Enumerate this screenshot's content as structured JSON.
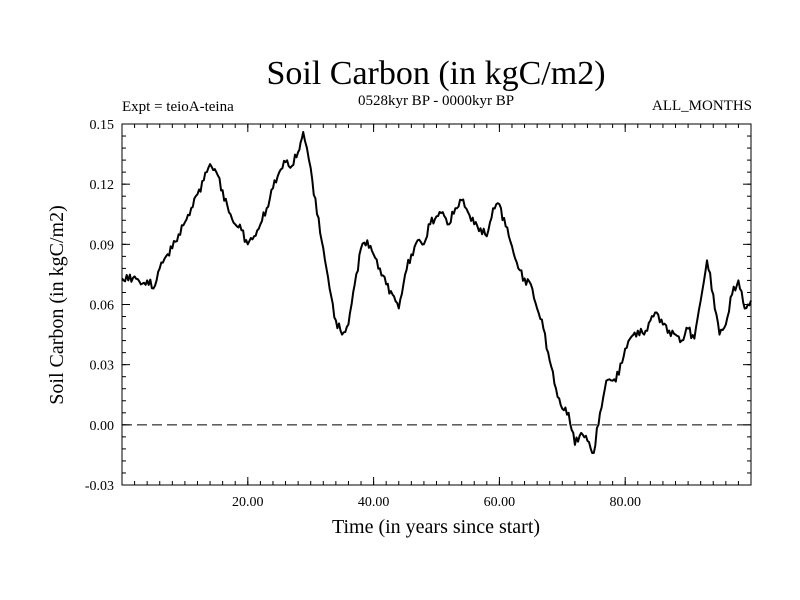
{
  "chart_data": {
    "type": "line",
    "title": "Soil Carbon (in kgC/m2)",
    "subtitle_left": "Expt = teioA-teina",
    "subtitle_center": "0528kyr BP - 0000kyr BP",
    "subtitle_right": "ALL_MONTHS",
    "xlabel": "Time (in years since start)",
    "ylabel": "Soil Carbon (in kgC/m2)",
    "xlim": [
      0,
      100
    ],
    "ylim": [
      -0.03,
      0.15
    ],
    "x_ticks": [
      20,
      40,
      60,
      80
    ],
    "x_tick_labels": [
      "20.00",
      "40.00",
      "60.00",
      "80.00"
    ],
    "y_ticks": [
      -0.03,
      0.0,
      0.03,
      0.06,
      0.09,
      0.12,
      0.15
    ],
    "y_tick_labels": [
      "-0.03",
      "0.00",
      "0.03",
      "0.06",
      "0.09",
      "0.12",
      "0.15"
    ],
    "reference_line": {
      "y": 0.0,
      "style": "dashed"
    },
    "series": [
      {
        "name": "Soil Carbon",
        "color": "#000000",
        "x": [
          0,
          1,
          2,
          3,
          4,
          5,
          6,
          7,
          8,
          9,
          10,
          11,
          12,
          13,
          14,
          15,
          16,
          17,
          18,
          19,
          20,
          21,
          22,
          23,
          24,
          25,
          26,
          27,
          28,
          28.8,
          30,
          31,
          32,
          33,
          34,
          35,
          36,
          37,
          38,
          39,
          40,
          41,
          42,
          43,
          44,
          45,
          46,
          47,
          48,
          49,
          50,
          51,
          52,
          53,
          54,
          55,
          56,
          57,
          58,
          59,
          60,
          61,
          62,
          63,
          64,
          65,
          66,
          67,
          68,
          69,
          70,
          71,
          72,
          73,
          74,
          75,
          76,
          77,
          78,
          79,
          80,
          81,
          82,
          83,
          84,
          85,
          86,
          87,
          88,
          89,
          90,
          91,
          92,
          93,
          94,
          95,
          96,
          97,
          98,
          99,
          100
        ],
        "values": [
          0.073,
          0.072,
          0.074,
          0.07,
          0.072,
          0.068,
          0.078,
          0.084,
          0.088,
          0.095,
          0.101,
          0.108,
          0.115,
          0.122,
          0.13,
          0.126,
          0.117,
          0.106,
          0.1,
          0.097,
          0.09,
          0.094,
          0.1,
          0.108,
          0.118,
          0.126,
          0.131,
          0.129,
          0.136,
          0.146,
          0.128,
          0.105,
          0.088,
          0.068,
          0.052,
          0.045,
          0.05,
          0.07,
          0.088,
          0.092,
          0.085,
          0.078,
          0.07,
          0.065,
          0.058,
          0.075,
          0.085,
          0.092,
          0.09,
          0.1,
          0.104,
          0.106,
          0.1,
          0.108,
          0.112,
          0.106,
          0.1,
          0.098,
          0.094,
          0.108,
          0.11,
          0.099,
          0.089,
          0.078,
          0.073,
          0.07,
          0.058,
          0.048,
          0.032,
          0.018,
          0.008,
          0.006,
          -0.01,
          -0.004,
          -0.008,
          -0.014,
          0.006,
          0.022,
          0.022,
          0.025,
          0.038,
          0.044,
          0.047,
          0.045,
          0.052,
          0.056,
          0.05,
          0.047,
          0.045,
          0.042,
          0.048,
          0.043,
          0.062,
          0.082,
          0.065,
          0.045,
          0.05,
          0.065,
          0.072,
          0.058,
          0.062
        ]
      }
    ]
  }
}
